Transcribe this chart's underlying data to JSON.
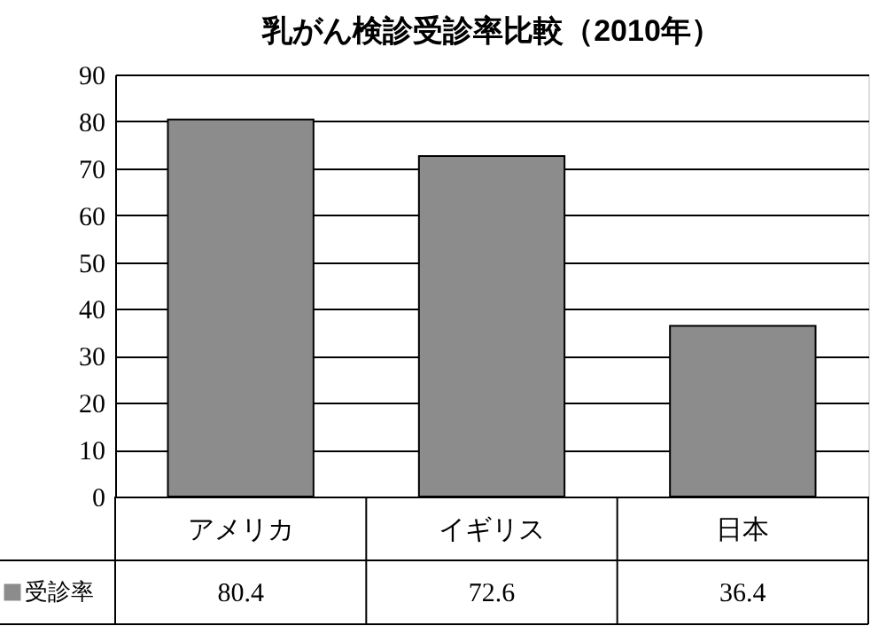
{
  "chart_data": {
    "type": "bar",
    "title": "乳がん検診受診率比較（2010年）",
    "categories": [
      "アメリカ",
      "イギリス",
      "日本"
    ],
    "series": [
      {
        "name": "受診率",
        "color": "#8c8c8c",
        "values": [
          80.4,
          72.6,
          36.4
        ]
      }
    ],
    "ylim": [
      0,
      90
    ],
    "yticks": [
      0,
      10,
      20,
      30,
      40,
      50,
      60,
      70,
      80,
      90
    ],
    "grid": "y",
    "legend": "bottom left",
    "data_labels": true
  }
}
